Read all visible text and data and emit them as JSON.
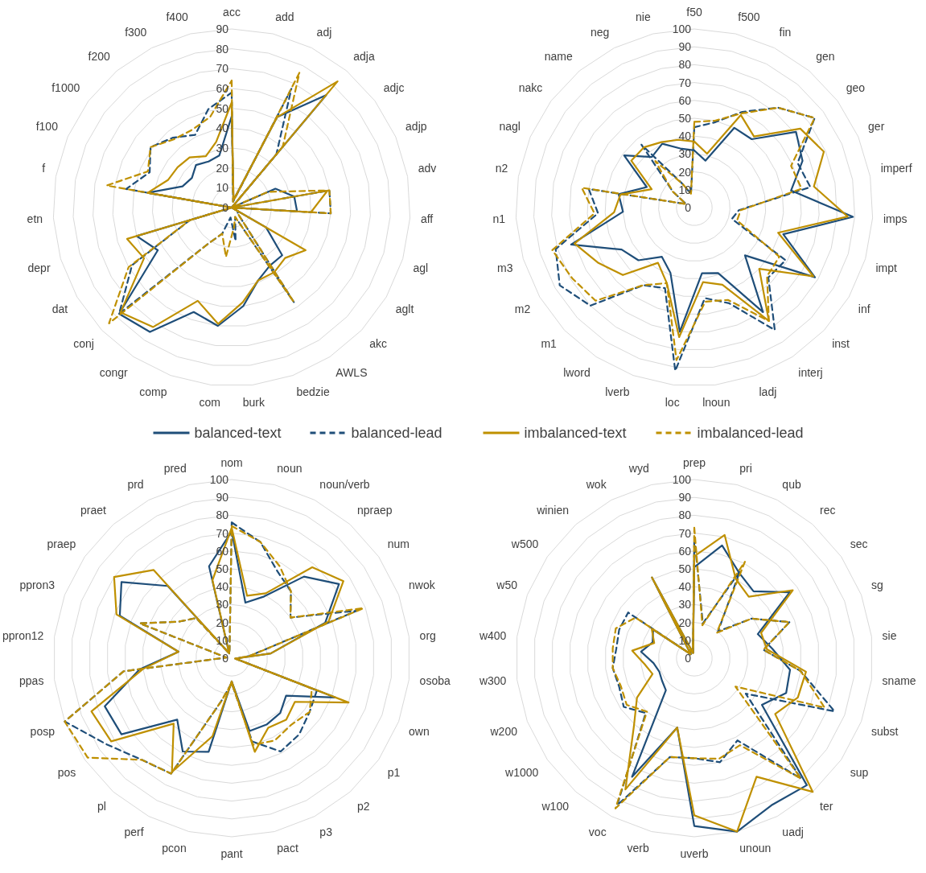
{
  "chart_data": [
    {
      "type": "radar",
      "categories": [
        "acc",
        "add",
        "adj",
        "adja",
        "adjc",
        "adjp",
        "adv",
        "aff",
        "agl",
        "aglt",
        "akc",
        "AWLS",
        "bedzie",
        "burk",
        "com",
        "comp",
        "congr",
        "conj",
        "dat",
        "depr",
        "etn",
        "f",
        "f100",
        "f1000",
        "f200",
        "f300",
        "f400"
      ],
      "ylim": [
        0,
        90
      ],
      "yticks": [
        0,
        10,
        20,
        30,
        40,
        50,
        60,
        70,
        80,
        90
      ],
      "grid": true,
      "legend": "bottom",
      "series": [
        {
          "name": "balanced-text",
          "color": "#1f4e79",
          "line_style": "solid",
          "values": [
            46,
            4,
            51,
            74,
            0,
            24,
            32,
            33,
            0,
            20,
            35,
            35,
            39,
            50,
            60,
            56,
            75,
            78,
            43,
            50,
            0,
            43,
            27,
            25,
            28,
            26,
            27
          ]
        },
        {
          "name": "balanced-lead",
          "color": "#1f4e79",
          "line_style": "dashed",
          "values": [
            58,
            3,
            67,
            35,
            0,
            0,
            50,
            50,
            0,
            4,
            4,
            57,
            5,
            17,
            5,
            14,
            22,
            78,
            58,
            22,
            0,
            54,
            45,
            51,
            46,
            41,
            51
          ]
        },
        {
          "name": "imbalanced-text",
          "color": "#bf9000",
          "line_style": "solid",
          "values": [
            53,
            4,
            51,
            83,
            0,
            0,
            49,
            40,
            0,
            43,
            37,
            39,
            39,
            48,
            59,
            50,
            72,
            77,
            51,
            55,
            0,
            43,
            35,
            34,
            33,
            29,
            34
          ]
        },
        {
          "name": "imbalanced-lead",
          "color": "#bf9000",
          "line_style": "dashed",
          "values": [
            64,
            3,
            76,
            40,
            0,
            20,
            50,
            50,
            0,
            4,
            4,
            57,
            5,
            10,
            25,
            14,
            22,
            85,
            60,
            22,
            0,
            64,
            46,
            51,
            45,
            44,
            47
          ]
        }
      ]
    },
    {
      "type": "radar",
      "categories": [
        "f50",
        "f500",
        "fin",
        "gen",
        "geo",
        "ger",
        "imperf",
        "imps",
        "impt",
        "inf",
        "inst",
        "interj",
        "ladj",
        "lnoun",
        "loc",
        "lverb",
        "lword",
        "m1",
        "m2",
        "m3",
        "n1",
        "n2",
        "nagl",
        "nakc",
        "name",
        "neg",
        "nie"
      ],
      "ylim": [
        0,
        100
      ],
      "yticks": [
        0,
        10,
        20,
        30,
        40,
        50,
        60,
        70,
        80,
        90,
        100
      ],
      "grid": true,
      "series": [
        {
          "color": "#1f4e79",
          "line_style": "solid",
          "values": [
            32,
            27,
            50,
            50,
            71,
            66,
            55,
            89,
            52,
            78,
            39,
            70,
            39,
            37,
            70,
            39,
            33,
            43,
            47,
            72,
            40,
            43,
            29,
            49,
            37,
            40,
            34
          ]
        },
        {
          "color": "#1f4e79",
          "line_style": "dashed",
          "values": [
            45,
            49,
            60,
            73,
            84,
            63,
            66,
            25,
            22,
            59,
            57,
            82,
            57,
            51,
            92,
            48,
            52,
            80,
            87,
            81,
            54,
            60,
            5,
            15,
            46,
            15,
            8
          ]
        },
        {
          "color": "#bf9000",
          "line_style": "solid",
          "values": [
            37,
            31,
            58,
            52,
            74,
            79,
            68,
            86,
            49,
            77,
            50,
            76,
            46,
            42,
            73,
            45,
            37,
            55,
            62,
            70,
            45,
            42,
            26,
            44,
            44,
            41,
            39
          ]
        },
        {
          "color": "#bf9000",
          "line_style": "dashed",
          "values": [
            48,
            50,
            59,
            73,
            84,
            59,
            61,
            26,
            25,
            55,
            56,
            76,
            55,
            53,
            86,
            45,
            52,
            76,
            79,
            83,
            56,
            64,
            5,
            15,
            34,
            15,
            8
          ]
        }
      ]
    },
    {
      "type": "radar",
      "categories": [
        "nom",
        "noun",
        "noun/verb",
        "npraep",
        "num",
        "nwok",
        "org",
        "osoba",
        "own",
        "p1",
        "p2",
        "p3",
        "pact",
        "pant",
        "pcon",
        "perf",
        "pl",
        "pos",
        "posp",
        "ppas",
        "ppron12",
        "ppron3",
        "praep",
        "praet",
        "prd",
        "pred"
      ],
      "ylim": [
        0,
        100
      ],
      "yticks": [
        0,
        10,
        20,
        30,
        40,
        50,
        60,
        70,
        80,
        90,
        100
      ],
      "grid": true,
      "series": [
        {
          "color": "#1f4e79",
          "line_style": "solid",
          "values": [
            71,
            32,
            39,
            61,
            73,
            56,
            22,
            2,
            62,
            37,
            41,
            42,
            42,
            13,
            54,
            59,
            46,
            75,
            76,
            52,
            30,
            67,
            75,
            54,
            3,
            53
          ]
        },
        {
          "color": "#1f4e79",
          "line_style": "dashed",
          "values": [
            76,
            67,
            55,
            50,
            40,
            75,
            10,
            2,
            51,
            53,
            57,
            59,
            48,
            14,
            25,
            73,
            76,
            85,
            100,
            61,
            3,
            55,
            36,
            30,
            3,
            5
          ]
        },
        {
          "color": "#bf9000",
          "line_style": "solid",
          "values": [
            73,
            36,
            41,
            68,
            76,
            58,
            22,
            2,
            70,
            43,
            46,
            44,
            54,
            13,
            45,
            72,
            49,
            82,
            84,
            50,
            30,
            69,
            80,
            66,
            3,
            45
          ]
        },
        {
          "color": "#bf9000",
          "line_style": "dashed",
          "values": [
            74,
            67,
            58,
            50,
            40,
            79,
            10,
            2,
            48,
            53,
            50,
            52,
            50,
            14,
            25,
            73,
            76,
            98,
            100,
            61,
            3,
            55,
            36,
            30,
            3,
            5
          ]
        }
      ]
    },
    {
      "type": "radar",
      "categories": [
        "prep",
        "pri",
        "qub",
        "rec",
        "sec",
        "sg",
        "sie",
        "sname",
        "subst",
        "sup",
        "ter",
        "uadj",
        "unoun",
        "uverb",
        "verb",
        "voc",
        "w100",
        "w1000",
        "w200",
        "w300",
        "w400",
        "w50",
        "w500",
        "winien",
        "wok",
        "wyd"
      ],
      "ylim": [
        0,
        100
      ],
      "yticks": [
        0,
        10,
        20,
        30,
        40,
        50,
        60,
        70,
        80,
        90,
        100
      ],
      "grid": true,
      "series": [
        {
          "color": "#1f4e79",
          "line_style": "solid",
          "values": [
            51,
            65,
            54,
            50,
            65,
            38,
            44,
            54,
            55,
            46,
            95,
            93,
            100,
            94,
            40,
            75,
            24,
            22,
            21,
            23,
            30,
            25,
            28,
            3,
            51,
            3
          ]
        },
        {
          "color": "#1f4e79",
          "line_style": "dashed",
          "values": [
            68,
            20,
            55,
            20,
            39,
            57,
            39,
            60,
            84,
            35,
            90,
            52,
            60,
            56,
            57,
            93,
            41,
            48,
            45,
            46,
            44,
            45,
            45,
            3,
            5,
            3
          ]
        },
        {
          "color": "#bf9000",
          "line_style": "solid",
          "values": [
            57,
            71,
            50,
            46,
            67,
            40,
            41,
            63,
            62,
            55,
            100,
            75,
            100,
            88,
            40,
            83,
            51,
            39,
            25,
            28,
            35,
            24,
            29,
            3,
            51,
            3
          ]
        },
        {
          "color": "#bf9000",
          "line_style": "dashed",
          "values": [
            73,
            19,
            61,
            19,
            39,
            57,
            39,
            60,
            78,
            28,
            90,
            55,
            58,
            56,
            57,
            95,
            40,
            46,
            44,
            46,
            46,
            47,
            40,
            3,
            5,
            3
          ]
        }
      ]
    }
  ]
}
